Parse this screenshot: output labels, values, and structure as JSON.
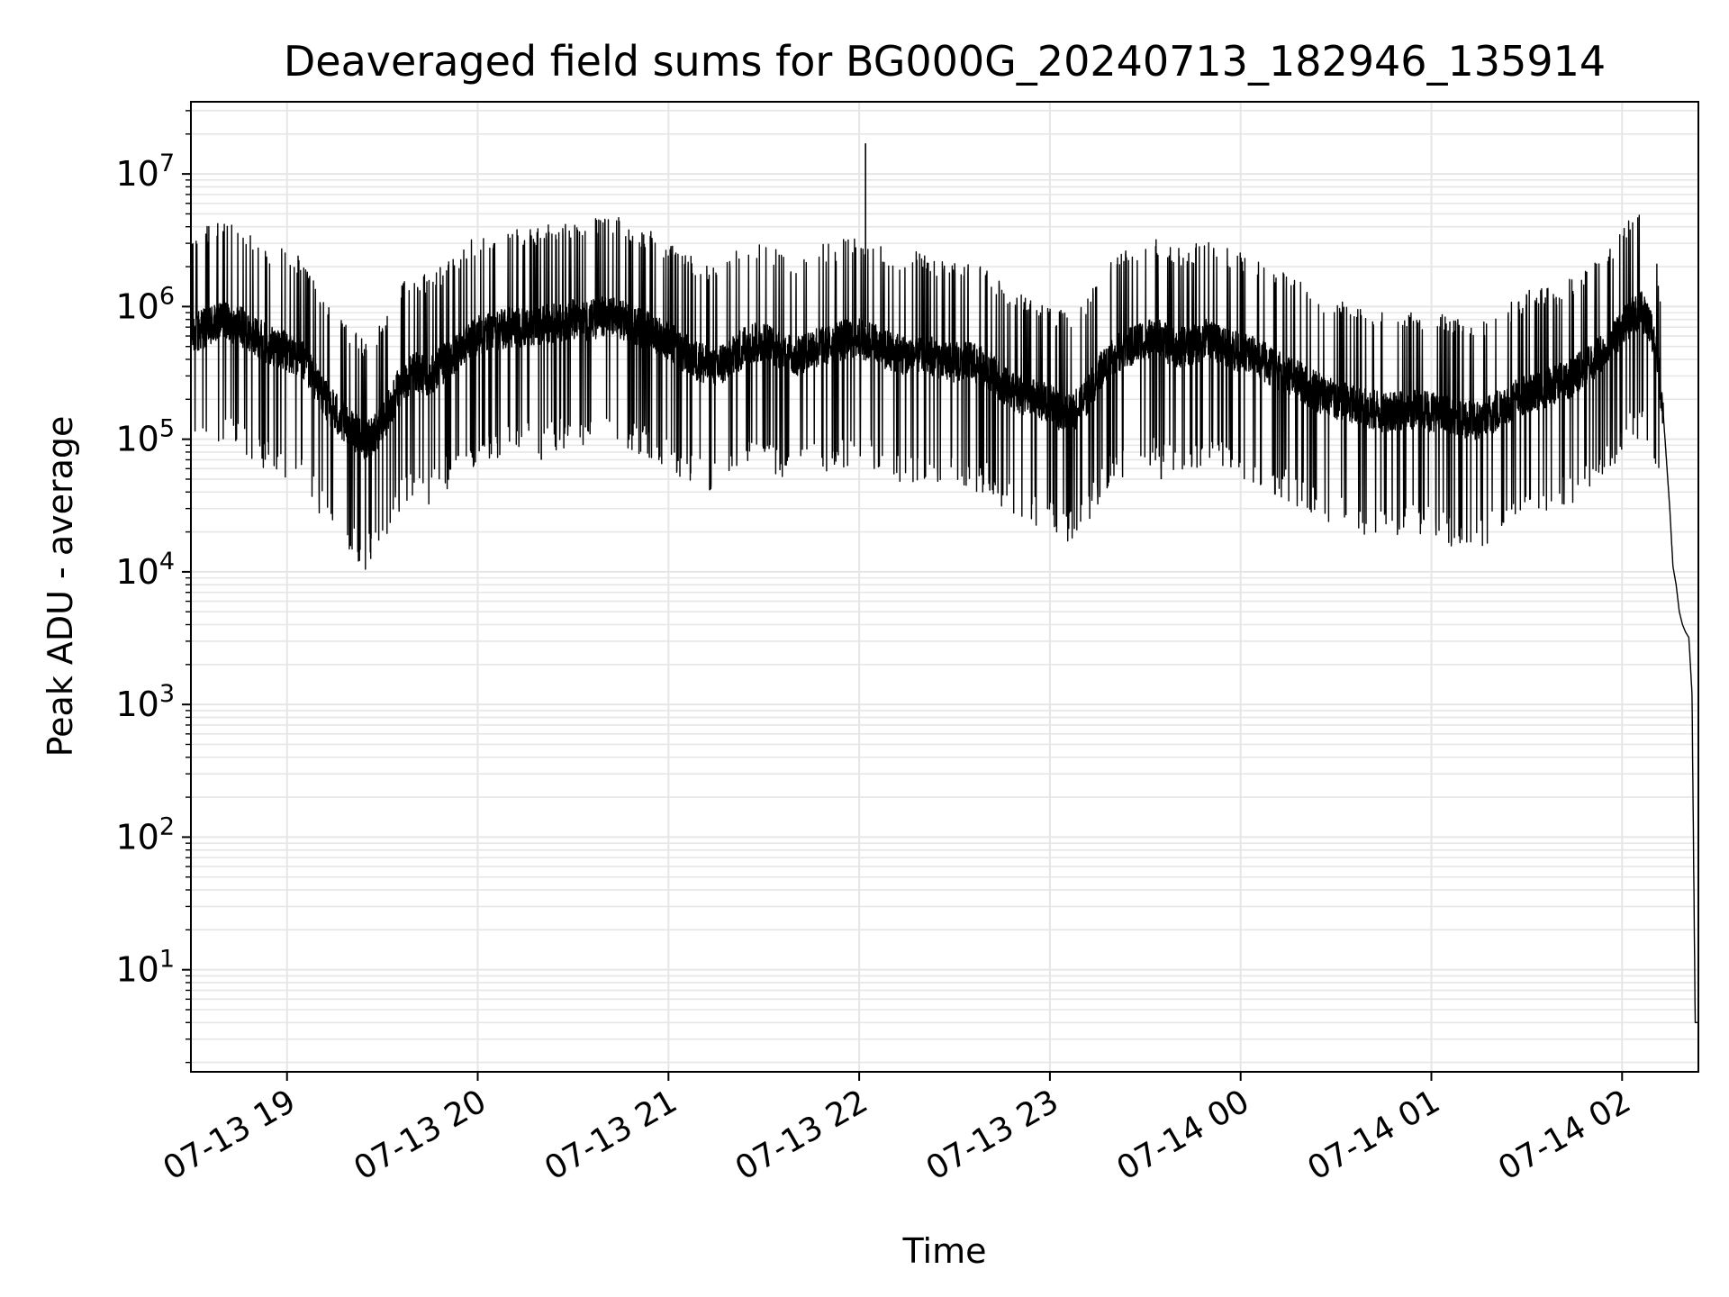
{
  "chart_data": {
    "type": "line",
    "title": "Deaveraged field sums for BG000G_20240713_182946_135914",
    "xlabel": "Time",
    "ylabel": "Peak ADU - average",
    "yscale": "log",
    "grid": true,
    "grid_minor": true,
    "legend": "none",
    "line_color": "#000000",
    "grid_color": "#e6e6e6",
    "xlim": [
      "2024-07-13 18:29:46",
      "2024-07-14 02:24:00"
    ],
    "ylim": [
      1.7,
      35000000
    ],
    "xticks": [
      {
        "value": "2024-07-13 19:00",
        "label": "07-13 19"
      },
      {
        "value": "2024-07-13 20:00",
        "label": "07-13 20"
      },
      {
        "value": "2024-07-13 21:00",
        "label": "07-13 21"
      },
      {
        "value": "2024-07-13 22:00",
        "label": "07-13 22"
      },
      {
        "value": "2024-07-13 23:00",
        "label": "07-13 23"
      },
      {
        "value": "2024-07-14 00:00",
        "label": "07-14 00"
      },
      {
        "value": "2024-07-14 01:00",
        "label": "07-14 01"
      },
      {
        "value": "2024-07-14 02:00",
        "label": "07-14 02"
      }
    ],
    "yticks": [
      {
        "value": 10,
        "base": "10",
        "exp": "1"
      },
      {
        "value": 100,
        "base": "10",
        "exp": "2"
      },
      {
        "value": 1000,
        "base": "10",
        "exp": "3"
      },
      {
        "value": 10000,
        "base": "10",
        "exp": "4"
      },
      {
        "value": 100000,
        "base": "10",
        "exp": "5"
      },
      {
        "value": 1000000,
        "base": "10",
        "exp": "6"
      },
      {
        "value": 10000000,
        "base": "10",
        "exp": "7"
      }
    ],
    "series": [
      {
        "points": [
          [
            "2024-07-13 18:30",
            620000
          ],
          [
            "2024-07-13 18:35",
            700000
          ],
          [
            "2024-07-13 18:40",
            780000
          ],
          [
            "2024-07-13 18:45",
            720000
          ],
          [
            "2024-07-13 18:50",
            600000
          ],
          [
            "2024-07-13 18:55",
            500000
          ],
          [
            "2024-07-13 19:00",
            460000
          ],
          [
            "2024-07-13 19:05",
            400000
          ],
          [
            "2024-07-13 19:10",
            240000
          ],
          [
            "2024-07-13 19:15",
            160000
          ],
          [
            "2024-07-13 19:20",
            120000
          ],
          [
            "2024-07-13 19:25",
            95000
          ],
          [
            "2024-07-13 19:30",
            130000
          ],
          [
            "2024-07-13 19:35",
            240000
          ],
          [
            "2024-07-13 19:40",
            320000
          ],
          [
            "2024-07-13 19:45",
            300000
          ],
          [
            "2024-07-13 19:50",
            380000
          ],
          [
            "2024-07-13 19:55",
            500000
          ],
          [
            "2024-07-13 20:00",
            600000
          ],
          [
            "2024-07-13 20:05",
            650000
          ],
          [
            "2024-07-13 20:10",
            700000
          ],
          [
            "2024-07-13 20:15",
            680000
          ],
          [
            "2024-07-13 20:20",
            720000
          ],
          [
            "2024-07-13 20:25",
            760000
          ],
          [
            "2024-07-13 20:30",
            800000
          ],
          [
            "2024-07-13 20:35",
            780000
          ],
          [
            "2024-07-13 20:40",
            850000
          ],
          [
            "2024-07-13 20:45",
            800000
          ],
          [
            "2024-07-13 20:50",
            700000
          ],
          [
            "2024-07-13 20:55",
            650000
          ],
          [
            "2024-07-13 21:00",
            550000
          ],
          [
            "2024-07-13 21:05",
            450000
          ],
          [
            "2024-07-13 21:10",
            380000
          ],
          [
            "2024-07-13 21:15",
            350000
          ],
          [
            "2024-07-13 21:20",
            420000
          ],
          [
            "2024-07-13 21:25",
            520000
          ],
          [
            "2024-07-13 21:30",
            550000
          ],
          [
            "2024-07-13 21:35",
            450000
          ],
          [
            "2024-07-13 21:40",
            420000
          ],
          [
            "2024-07-13 21:45",
            480000
          ],
          [
            "2024-07-13 21:50",
            520000
          ],
          [
            "2024-07-13 21:55",
            560000
          ],
          [
            "2024-07-13 22:00",
            580000
          ],
          [
            "2024-07-13 22:05",
            520000
          ],
          [
            "2024-07-13 22:10",
            450000
          ],
          [
            "2024-07-13 22:15",
            420000
          ],
          [
            "2024-07-13 22:20",
            450000
          ],
          [
            "2024-07-13 22:25",
            400000
          ],
          [
            "2024-07-13 22:30",
            380000
          ],
          [
            "2024-07-13 22:35",
            380000
          ],
          [
            "2024-07-13 22:40",
            350000
          ],
          [
            "2024-07-13 22:45",
            260000
          ],
          [
            "2024-07-13 22:50",
            220000
          ],
          [
            "2024-07-13 22:55",
            200000
          ],
          [
            "2024-07-13 23:00",
            190000
          ],
          [
            "2024-07-13 23:05",
            150000
          ],
          [
            "2024-07-13 23:10",
            180000
          ],
          [
            "2024-07-13 23:15",
            300000
          ],
          [
            "2024-07-13 23:20",
            420000
          ],
          [
            "2024-07-13 23:25",
            500000
          ],
          [
            "2024-07-13 23:30",
            560000
          ],
          [
            "2024-07-13 23:35",
            560000
          ],
          [
            "2024-07-13 23:40",
            480000
          ],
          [
            "2024-07-13 23:45",
            520000
          ],
          [
            "2024-07-13 23:50",
            580000
          ],
          [
            "2024-07-13 23:55",
            500000
          ],
          [
            "2024-07-14 00:00",
            450000
          ],
          [
            "2024-07-14 00:05",
            420000
          ],
          [
            "2024-07-14 00:10",
            350000
          ],
          [
            "2024-07-14 00:15",
            300000
          ],
          [
            "2024-07-14 00:20",
            260000
          ],
          [
            "2024-07-14 00:25",
            220000
          ],
          [
            "2024-07-14 00:30",
            200000
          ],
          [
            "2024-07-14 00:35",
            180000
          ],
          [
            "2024-07-14 00:40",
            170000
          ],
          [
            "2024-07-14 00:45",
            160000
          ],
          [
            "2024-07-14 00:50",
            165000
          ],
          [
            "2024-07-14 00:55",
            170000
          ],
          [
            "2024-07-14 01:00",
            160000
          ],
          [
            "2024-07-14 01:05",
            150000
          ],
          [
            "2024-07-14 01:10",
            140000
          ],
          [
            "2024-07-14 01:15",
            135000
          ],
          [
            "2024-07-14 01:20",
            160000
          ],
          [
            "2024-07-14 01:25",
            190000
          ],
          [
            "2024-07-14 01:30",
            220000
          ],
          [
            "2024-07-14 01:35",
            240000
          ],
          [
            "2024-07-14 01:40",
            260000
          ],
          [
            "2024-07-14 01:45",
            300000
          ],
          [
            "2024-07-14 01:50",
            380000
          ],
          [
            "2024-07-14 01:55",
            480000
          ],
          [
            "2024-07-14 02:00",
            680000
          ],
          [
            "2024-07-14 02:03",
            850000
          ],
          [
            "2024-07-14 02:06",
            950000
          ],
          [
            "2024-07-14 02:09",
            700000
          ],
          [
            "2024-07-14 02:11",
            420000
          ],
          [
            "2024-07-14 02:13",
            150000
          ],
          [
            "2024-07-14 02:15",
            30000
          ],
          [
            "2024-07-14 02:16",
            11000
          ],
          [
            "2024-07-14 02:17",
            8000
          ],
          [
            "2024-07-14 02:18",
            5000
          ],
          [
            "2024-07-14 02:19",
            4000
          ],
          [
            "2024-07-14 02:20",
            3500
          ],
          [
            "2024-07-14 02:21",
            3200
          ],
          [
            "2024-07-14 02:22",
            1200
          ],
          [
            "2024-07-14 02:23",
            4
          ],
          [
            "2024-07-14 02:24",
            4
          ]
        ],
        "spikes": [
          {
            "x": "2024-07-13 20:05",
            "y": 2900000
          },
          {
            "x": "2024-07-13 22:02",
            "y": 17000000
          },
          {
            "x": "2024-07-13 23:35",
            "y": 50000
          },
          {
            "x": "2024-07-13 20:20",
            "y": 70000
          }
        ]
      }
    ]
  }
}
